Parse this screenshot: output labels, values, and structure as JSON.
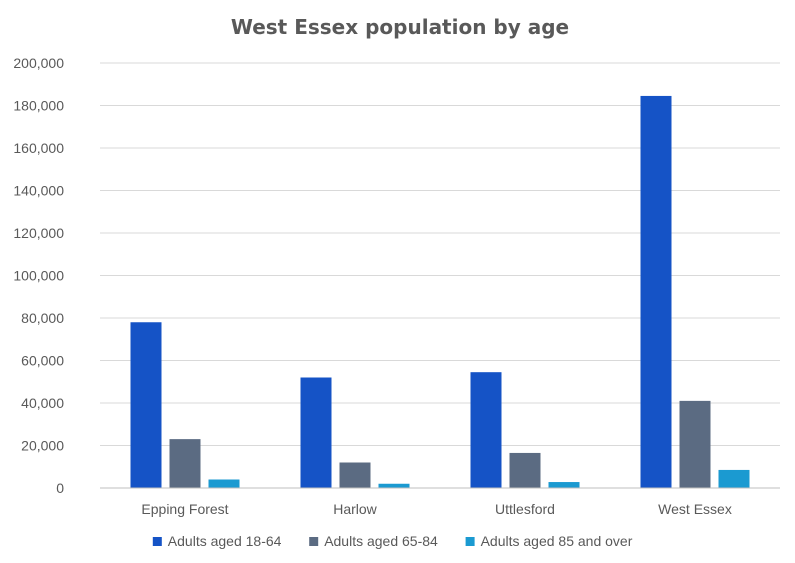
{
  "chart_data": {
    "type": "bar",
    "title": "West Essex population by age",
    "categories": [
      "Epping Forest",
      "Harlow",
      "Uttlesford",
      "West Essex"
    ],
    "series": [
      {
        "name": "Adults aged 18-64",
        "values": [
          78000,
          52000,
          54500,
          184500
        ],
        "color": "#1553c6"
      },
      {
        "name": "Adults aged 65-84",
        "values": [
          23000,
          12000,
          16500,
          41000
        ],
        "color": "#5b6b82"
      },
      {
        "name": "Adults aged 85 and over",
        "values": [
          4000,
          2000,
          2800,
          8500
        ],
        "color": "#1b9ad1"
      }
    ],
    "ylim": [
      0,
      200000
    ],
    "yticks": [
      0,
      20000,
      40000,
      60000,
      80000,
      100000,
      120000,
      140000,
      160000,
      180000,
      200000
    ],
    "ytick_labels": [
      "0",
      "20,000",
      "40,000",
      "60,000",
      "80,000",
      "100,000",
      "120,000",
      "140,000",
      "160,000",
      "180,000",
      "200,000"
    ],
    "grid": true,
    "legend_position": "bottom"
  }
}
